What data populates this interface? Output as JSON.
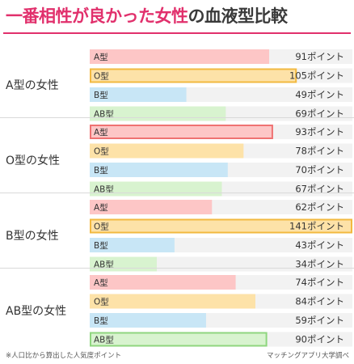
{
  "title": {
    "highlight": "一番相性が良かった女性",
    "rest": "の血液型比較"
  },
  "footnote": "※人口比から算出した人気度ポイント",
  "source": "マッチングアプリ大学調べ",
  "colors": {
    "A": {
      "fill": "#fdc6c6",
      "border": "#ef7272"
    },
    "O": {
      "fill": "#fde2a8",
      "border": "#f2b940"
    },
    "B": {
      "fill": "#c8e6f6",
      "border": "#6cb6e3"
    },
    "AB": {
      "fill": "#d8f3cf",
      "border": "#8fd67f"
    },
    "highlight_text": "#333333"
  },
  "chart_data": {
    "type": "bar",
    "orientation": "horizontal",
    "unit": "ポイント",
    "xlim": [
      0,
      145
    ],
    "groups": [
      {
        "label": "A型の女性",
        "bars": [
          {
            "category": "A型",
            "key": "A",
            "value": 91,
            "value_label": "91ポイント",
            "highlight": false
          },
          {
            "category": "O型",
            "key": "O",
            "value": 105,
            "value_label": "105ポイント",
            "highlight": true
          },
          {
            "category": "B型",
            "key": "B",
            "value": 49,
            "value_label": "49ポイント",
            "highlight": false
          },
          {
            "category": "AB型",
            "key": "AB",
            "value": 69,
            "value_label": "69ポイント",
            "highlight": false
          }
        ]
      },
      {
        "label": "O型の女性",
        "bars": [
          {
            "category": "A型",
            "key": "A",
            "value": 93,
            "value_label": "93ポイント",
            "highlight": true
          },
          {
            "category": "O型",
            "key": "O",
            "value": 78,
            "value_label": "78ポイント",
            "highlight": false
          },
          {
            "category": "B型",
            "key": "B",
            "value": 70,
            "value_label": "70ポイント",
            "highlight": false
          },
          {
            "category": "AB型",
            "key": "AB",
            "value": 67,
            "value_label": "67ポイント",
            "highlight": false
          }
        ]
      },
      {
        "label": "B型の女性",
        "bars": [
          {
            "category": "A型",
            "key": "A",
            "value": 62,
            "value_label": "62ポイント",
            "highlight": false
          },
          {
            "category": "O型",
            "key": "O",
            "value": 141,
            "value_label": "141ポイント",
            "highlight": true
          },
          {
            "category": "B型",
            "key": "B",
            "value": 43,
            "value_label": "43ポイント",
            "highlight": false
          },
          {
            "category": "AB型",
            "key": "AB",
            "value": 34,
            "value_label": "34ポイント",
            "highlight": false
          }
        ]
      },
      {
        "label": "AB型の女性",
        "bars": [
          {
            "category": "A型",
            "key": "A",
            "value": 74,
            "value_label": "74ポイント",
            "highlight": false
          },
          {
            "category": "O型",
            "key": "O",
            "value": 84,
            "value_label": "84ポイント",
            "highlight": false
          },
          {
            "category": "B型",
            "key": "B",
            "value": 59,
            "value_label": "59ポイント",
            "highlight": false
          },
          {
            "category": "AB型",
            "key": "AB",
            "value": 90,
            "value_label": "90ポイント",
            "highlight": true
          }
        ]
      }
    ]
  }
}
